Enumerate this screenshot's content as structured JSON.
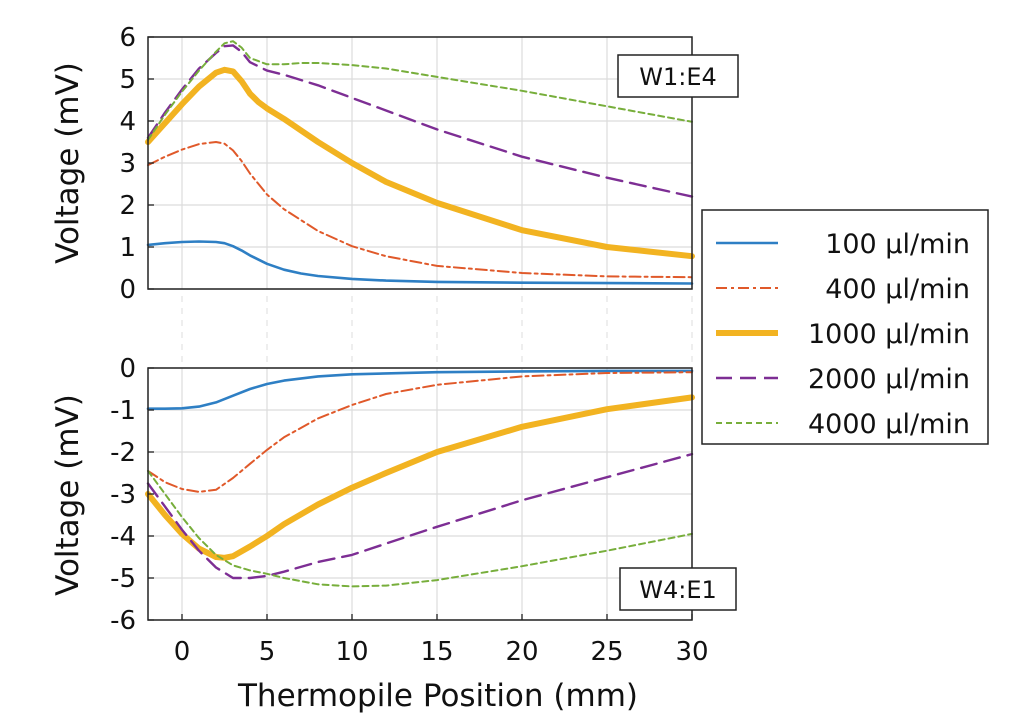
{
  "chart_data": [
    {
      "type": "line",
      "panel_label": "W1:E4",
      "ylabel": "Voltage (mV)",
      "xlim": [
        -2,
        30
      ],
      "ylim": [
        0,
        6
      ],
      "yticks": [
        0,
        1,
        2,
        3,
        4,
        5,
        6
      ],
      "grid": true,
      "series": [
        {
          "name": "100 µl/min",
          "x": [
            -2,
            -1,
            0,
            1,
            2,
            2.5,
            3,
            3.5,
            4,
            5,
            6,
            7,
            8,
            10,
            12,
            15,
            20,
            25,
            30
          ],
          "y": [
            1.05,
            1.09,
            1.12,
            1.13,
            1.12,
            1.09,
            1.02,
            0.92,
            0.8,
            0.6,
            0.46,
            0.37,
            0.31,
            0.24,
            0.2,
            0.17,
            0.15,
            0.14,
            0.13
          ]
        },
        {
          "name": "400 µl/min",
          "x": [
            -2,
            -1,
            0,
            1,
            2,
            2.5,
            3,
            3.5,
            4,
            5,
            6,
            8,
            10,
            12,
            15,
            20,
            25,
            30
          ],
          "y": [
            2.95,
            3.15,
            3.32,
            3.45,
            3.5,
            3.46,
            3.3,
            3.05,
            2.75,
            2.25,
            1.9,
            1.38,
            1.02,
            0.78,
            0.55,
            0.38,
            0.3,
            0.28
          ]
        },
        {
          "name": "1000 µl/min",
          "x": [
            -2,
            -1,
            0,
            1,
            2,
            2.5,
            3,
            3.5,
            4,
            4.5,
            5,
            6,
            8,
            10,
            12,
            15,
            20,
            25,
            30
          ],
          "y": [
            3.5,
            3.95,
            4.4,
            4.82,
            5.15,
            5.22,
            5.18,
            4.95,
            4.65,
            4.45,
            4.3,
            4.05,
            3.5,
            3.0,
            2.55,
            2.05,
            1.4,
            1.0,
            0.78
          ]
        },
        {
          "name": "2000 µl/min",
          "x": [
            -2,
            -1,
            0,
            1,
            2,
            2.5,
            3,
            3.5,
            4,
            5,
            6,
            8,
            10,
            12,
            15,
            20,
            25,
            30
          ],
          "y": [
            3.6,
            4.2,
            4.75,
            5.25,
            5.62,
            5.78,
            5.8,
            5.65,
            5.4,
            5.2,
            5.1,
            4.85,
            4.55,
            4.25,
            3.8,
            3.15,
            2.65,
            2.2
          ]
        },
        {
          "name": "4000 µl/min",
          "x": [
            -2,
            -1,
            0,
            1,
            2,
            2.5,
            3,
            3.5,
            4,
            5,
            6,
            7,
            8,
            10,
            12,
            15,
            20,
            25,
            30
          ],
          "y": [
            3.55,
            4.15,
            4.7,
            5.2,
            5.65,
            5.85,
            5.9,
            5.75,
            5.5,
            5.35,
            5.35,
            5.38,
            5.38,
            5.33,
            5.25,
            5.05,
            4.72,
            4.35,
            3.98
          ]
        }
      ]
    },
    {
      "type": "line",
      "panel_label": "W4:E1",
      "ylabel": "Voltage (mV)",
      "xlabel": "Thermopile Position (mm)",
      "xlim": [
        -2,
        30
      ],
      "ylim": [
        -6,
        0
      ],
      "xticks": [
        0,
        5,
        10,
        15,
        20,
        25,
        30
      ],
      "yticks": [
        -6,
        -5,
        -4,
        -3,
        -2,
        -1,
        0
      ],
      "grid": true,
      "series": [
        {
          "name": "100 µl/min",
          "x": [
            -2,
            -1,
            0,
            1,
            2,
            3,
            4,
            5,
            6,
            8,
            10,
            15,
            20,
            25,
            30
          ],
          "y": [
            -0.97,
            -0.97,
            -0.96,
            -0.92,
            -0.82,
            -0.66,
            -0.5,
            -0.38,
            -0.3,
            -0.2,
            -0.15,
            -0.1,
            -0.08,
            -0.07,
            -0.07
          ]
        },
        {
          "name": "400 µl/min",
          "x": [
            -2,
            -1,
            0,
            1,
            2,
            3,
            4,
            5,
            6,
            8,
            10,
            12,
            15,
            20,
            25,
            30
          ],
          "y": [
            -2.45,
            -2.72,
            -2.88,
            -2.95,
            -2.9,
            -2.62,
            -2.28,
            -1.95,
            -1.65,
            -1.2,
            -0.88,
            -0.62,
            -0.4,
            -0.2,
            -0.12,
            -0.1
          ]
        },
        {
          "name": "1000 µl/min",
          "x": [
            -2,
            -1,
            0,
            1,
            2,
            2.5,
            3,
            4,
            5,
            6,
            8,
            10,
            12,
            15,
            20,
            25,
            30
          ],
          "y": [
            -3.0,
            -3.5,
            -3.95,
            -4.3,
            -4.5,
            -4.52,
            -4.48,
            -4.25,
            -4.0,
            -3.72,
            -3.25,
            -2.85,
            -2.5,
            -2.0,
            -1.4,
            -0.98,
            -0.7
          ]
        },
        {
          "name": "2000 µl/min",
          "x": [
            -2,
            -1,
            0,
            1,
            2,
            3,
            4,
            5,
            6,
            8,
            10,
            12,
            15,
            20,
            25,
            30
          ],
          "y": [
            -2.75,
            -3.3,
            -3.85,
            -4.35,
            -4.75,
            -5.0,
            -5.0,
            -4.95,
            -4.85,
            -4.62,
            -4.45,
            -4.18,
            -3.78,
            -3.15,
            -2.6,
            -2.05
          ]
        },
        {
          "name": "4000 µl/min",
          "x": [
            -2,
            -1,
            0,
            1,
            2,
            3,
            4,
            5,
            6,
            8,
            10,
            12,
            15,
            20,
            25,
            30
          ],
          "y": [
            -2.45,
            -3.0,
            -3.55,
            -4.05,
            -4.45,
            -4.7,
            -4.82,
            -4.9,
            -5.0,
            -5.15,
            -5.2,
            -5.18,
            -5.05,
            -4.72,
            -4.35,
            -3.95
          ]
        }
      ]
    }
  ],
  "legend": {
    "entries": [
      "100 µl/min",
      "400 µl/min",
      "1000 µl/min",
      "2000 µl/min",
      "4000 µl/min"
    ]
  },
  "style": {
    "colors": [
      "#2e7fc4",
      "#e0592a",
      "#f2b321",
      "#7d2e94",
      "#77ae3b"
    ],
    "widths": [
      2.6,
      2.0,
      6.0,
      2.4,
      2.0
    ],
    "dashes": [
      "",
      "11 4 3 4",
      "",
      "16 8",
      "6 4"
    ]
  }
}
